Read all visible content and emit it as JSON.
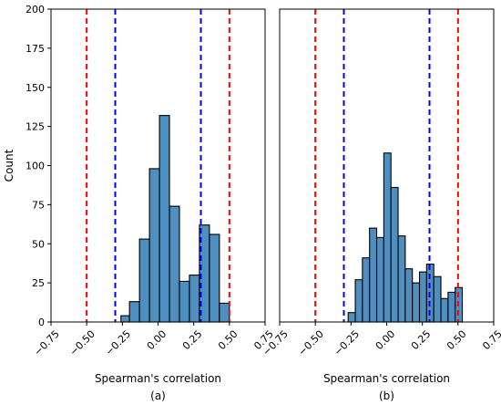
{
  "chart_data": [
    {
      "type": "bar",
      "panel_label": "(a)",
      "xlabel": "Spearman's correlation",
      "ylabel": "Count",
      "xlim": [
        -0.75,
        0.75
      ],
      "ylim": [
        0,
        200
      ],
      "xticks": [
        "−0.75",
        "−0.50",
        "−0.25",
        "0.00",
        "0.25",
        "0.50",
        "0.75"
      ],
      "yticks": [
        "0",
        "25",
        "50",
        "75",
        "100",
        "125",
        "150",
        "175",
        "200"
      ],
      "bar_color": "#4f8fc0",
      "bins": [
        {
          "x0": -0.26,
          "x1": -0.2,
          "count": 4
        },
        {
          "x0": -0.2,
          "x1": -0.13,
          "count": 13
        },
        {
          "x0": -0.13,
          "x1": -0.06,
          "count": 53
        },
        {
          "x0": -0.06,
          "x1": 0.01,
          "count": 98
        },
        {
          "x0": 0.01,
          "x1": 0.08,
          "count": 132
        },
        {
          "x0": 0.08,
          "x1": 0.15,
          "count": 74
        },
        {
          "x0": 0.15,
          "x1": 0.22,
          "count": 26
        },
        {
          "x0": 0.22,
          "x1": 0.29,
          "count": 30
        },
        {
          "x0": 0.29,
          "x1": 0.36,
          "count": 62
        },
        {
          "x0": 0.36,
          "x1": 0.43,
          "count": 56
        },
        {
          "x0": 0.43,
          "x1": 0.5,
          "count": 12
        }
      ],
      "vlines": [
        {
          "x": -0.5,
          "color": "#ff0000"
        },
        {
          "x": 0.5,
          "color": "#ff0000"
        },
        {
          "x": -0.3,
          "color": "#0000ff"
        },
        {
          "x": 0.3,
          "color": "#0000ff"
        }
      ]
    },
    {
      "type": "bar",
      "panel_label": "(b)",
      "xlabel": "Spearman's correlation",
      "xlim": [
        -0.75,
        0.75
      ],
      "ylim": [
        0,
        200
      ],
      "xticks": [
        "−0.75",
        "−0.50",
        "−0.25",
        "0.00",
        "0.25",
        "0.50",
        "0.75"
      ],
      "bar_color": "#4f8fc0",
      "bins": [
        {
          "x0": -0.27,
          "x1": -0.22,
          "count": 6
        },
        {
          "x0": -0.22,
          "x1": -0.17,
          "count": 27
        },
        {
          "x0": -0.17,
          "x1": -0.12,
          "count": 41
        },
        {
          "x0": -0.12,
          "x1": -0.07,
          "count": 60
        },
        {
          "x0": -0.07,
          "x1": -0.02,
          "count": 54
        },
        {
          "x0": -0.02,
          "x1": 0.03,
          "count": 108
        },
        {
          "x0": 0.03,
          "x1": 0.08,
          "count": 86
        },
        {
          "x0": 0.08,
          "x1": 0.13,
          "count": 55
        },
        {
          "x0": 0.13,
          "x1": 0.18,
          "count": 34
        },
        {
          "x0": 0.18,
          "x1": 0.23,
          "count": 25
        },
        {
          "x0": 0.23,
          "x1": 0.28,
          "count": 32
        },
        {
          "x0": 0.28,
          "x1": 0.33,
          "count": 37
        },
        {
          "x0": 0.33,
          "x1": 0.38,
          "count": 29
        },
        {
          "x0": 0.38,
          "x1": 0.43,
          "count": 15
        },
        {
          "x0": 0.43,
          "x1": 0.48,
          "count": 19
        },
        {
          "x0": 0.48,
          "x1": 0.53,
          "count": 22
        }
      ],
      "vlines": [
        {
          "x": -0.5,
          "color": "#ff0000"
        },
        {
          "x": 0.5,
          "color": "#ff0000"
        },
        {
          "x": -0.3,
          "color": "#0000ff"
        },
        {
          "x": 0.3,
          "color": "#0000ff"
        }
      ]
    }
  ]
}
